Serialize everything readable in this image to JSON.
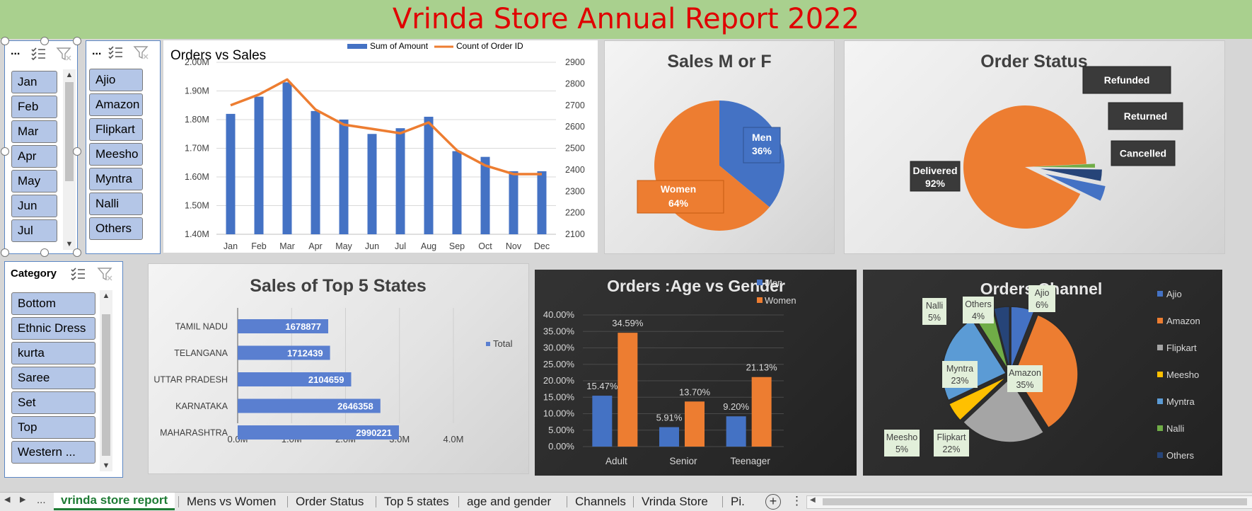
{
  "title": "Vrinda Store Annual Report 2022",
  "colors": {
    "blue": "#4472c4",
    "orange": "#ed7d31",
    "gray": "#a5a5a5",
    "yellow": "#ffc000",
    "lightblue": "#5b9bd5",
    "green": "#70ad47",
    "navy": "#264478",
    "title_red": "#e00000",
    "header_green": "#a9d08e",
    "slicer_btn": "#b4c6e7"
  },
  "slicers": {
    "month": {
      "dots": "...",
      "items": [
        "Jan",
        "Feb",
        "Mar",
        "Apr",
        "May",
        "Jun",
        "Jul"
      ]
    },
    "channel": {
      "dots": "...",
      "items": [
        "Ajio",
        "Amazon",
        "Flipkart",
        "Meesho",
        "Myntra",
        "Nalli",
        "Others"
      ]
    },
    "category": {
      "caption": "Category",
      "items": [
        "Bottom",
        "Ethnic Dress",
        "kurta",
        "Saree",
        "Set",
        "Top",
        "Western ..."
      ]
    }
  },
  "icons": {
    "multiselect": "multiselect-icon",
    "clear_filter": "clear-filter-icon",
    "scroll_up": "scroll-up-icon",
    "scroll_down": "scroll-down-icon",
    "add_sheet": "add-sheet-icon",
    "more": "more-options-icon"
  },
  "chart_data": [
    {
      "type": "bar",
      "title": "Orders vs Sales",
      "categories": [
        "Jan",
        "Feb",
        "Mar",
        "Apr",
        "May",
        "Jun",
        "Jul",
        "Aug",
        "Sep",
        "Oct",
        "Nov",
        "Dec"
      ],
      "series": [
        {
          "name": "Sum of Amount",
          "type": "bar",
          "axis": "left",
          "values": [
            1.82,
            1.88,
            1.93,
            1.83,
            1.8,
            1.75,
            1.77,
            1.81,
            1.69,
            1.67,
            1.62,
            1.62
          ]
        },
        {
          "name": "Count of Order ID",
          "type": "line",
          "axis": "right",
          "values": [
            2700,
            2750,
            2820,
            2680,
            2610,
            2590,
            2570,
            2620,
            2490,
            2420,
            2380,
            2380
          ]
        }
      ],
      "ylim": [
        1.4,
        2.0
      ],
      "yticks": [
        "1.40M",
        "1.50M",
        "1.60M",
        "1.70M",
        "1.80M",
        "1.90M",
        "2.00M"
      ],
      "y2lim": [
        2100,
        2900
      ],
      "y2ticks": [
        "2100",
        "2200",
        "2300",
        "2400",
        "2500",
        "2600",
        "2700",
        "2800",
        "2900"
      ],
      "legend": "top-right"
    },
    {
      "type": "pie",
      "title": "Sales M or F",
      "labels": [
        "Men",
        "Women"
      ],
      "values": [
        36,
        64
      ],
      "value_labels": [
        "36%",
        "64%"
      ]
    },
    {
      "type": "pie",
      "title": "Order Status",
      "labels": [
        "Delivered",
        "Refunded",
        "Returned",
        "Cancelled"
      ],
      "values": [
        92,
        1,
        3,
        4
      ],
      "value_labels": [
        "92%"
      ]
    },
    {
      "type": "bar",
      "orientation": "horizontal",
      "title": "Sales of Top 5 States",
      "categories": [
        "TAMIL NADU",
        "TELANGANA",
        "UTTAR PRADESH",
        "KARNATAKA",
        "MAHARASHTRA"
      ],
      "series": [
        {
          "name": "Total",
          "values": [
            1678877,
            1712439,
            2104659,
            2646358,
            2990221
          ]
        }
      ],
      "xlim": [
        0,
        4000000
      ],
      "xticks": [
        "0.0M",
        "1.0M",
        "2.0M",
        "3.0M",
        "4.0M"
      ],
      "legend": "right"
    },
    {
      "type": "bar",
      "title": "Orders :Age vs Gender",
      "categories": [
        "Adult",
        "Senior",
        "Teenager"
      ],
      "series": [
        {
          "name": "Men",
          "values": [
            15.47,
            5.91,
            9.2
          ],
          "labels": [
            "15.47%",
            "5.91%",
            "9.20%"
          ]
        },
        {
          "name": "Women",
          "values": [
            34.59,
            13.7,
            21.13
          ],
          "labels": [
            "34.59%",
            "13.70%",
            "21.13%"
          ]
        }
      ],
      "ylim": [
        0,
        40
      ],
      "yticks": [
        "0.00%",
        "5.00%",
        "10.00%",
        "15.00%",
        "20.00%",
        "25.00%",
        "30.00%",
        "35.00%",
        "40.00%"
      ],
      "legend": "top"
    },
    {
      "type": "pie",
      "title": "Orders Channel",
      "labels": [
        "Ajio",
        "Amazon",
        "Flipkart",
        "Meesho",
        "Myntra",
        "Nalli",
        "Others"
      ],
      "values": [
        6,
        35,
        22,
        5,
        23,
        5,
        4
      ],
      "value_labels": [
        "6%",
        "35%",
        "22%",
        "5%",
        "23%",
        "5%",
        "4%"
      ],
      "legend": "right"
    }
  ],
  "tabs": {
    "nav_prev": "◀",
    "nav_next": "▶",
    "nav_more": "...",
    "items": [
      "vrinda store report",
      "Mens vs Women",
      "Order Status",
      "Top 5 states",
      "age and gender",
      "Channels",
      "Vrinda Store",
      "Pi..."
    ],
    "active": "vrinda store report",
    "add": "+",
    "more": "⋮"
  }
}
